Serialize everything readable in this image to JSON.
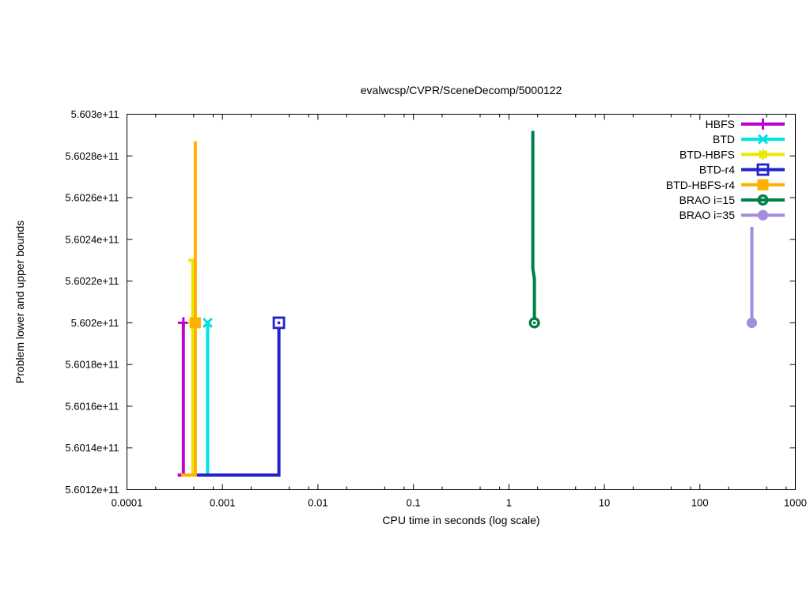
{
  "chart_data": {
    "type": "line",
    "title": "evalwcsp/CVPR/SceneDecomp/5000122",
    "xlabel": "CPU time in seconds (log scale)",
    "ylabel": "Problem lower and upper bounds",
    "x_scale": "log",
    "grid": false,
    "legend_position": "top-right-inside",
    "x_range": [
      0.0001,
      1000
    ],
    "x_ticks": [
      {
        "v": 0.0001,
        "label": "0.0001"
      },
      {
        "v": 0.001,
        "label": "0.001"
      },
      {
        "v": 0.01,
        "label": "0.01"
      },
      {
        "v": 0.1,
        "label": "0.1"
      },
      {
        "v": 1,
        "label": "1"
      },
      {
        "v": 10,
        "label": "10"
      },
      {
        "v": 100,
        "label": "100"
      },
      {
        "v": 1000,
        "label": "1000"
      }
    ],
    "x_minor_multiples": [
      2,
      5,
      8
    ],
    "y_range": [
      560120000000,
      560300000000
    ],
    "y_ticks": [
      {
        "v": 560120000000,
        "label": "5.6012e+11"
      },
      {
        "v": 560140000000,
        "label": "5.6014e+11"
      },
      {
        "v": 560160000000,
        "label": "5.6016e+11"
      },
      {
        "v": 560180000000,
        "label": "5.6018e+11"
      },
      {
        "v": 560200000000,
        "label": "5.602e+11"
      },
      {
        "v": 560220000000,
        "label": "5.6022e+11"
      },
      {
        "v": 560240000000,
        "label": "5.6024e+11"
      },
      {
        "v": 560260000000,
        "label": "5.6026e+11"
      },
      {
        "v": 560280000000,
        "label": "5.6028e+11"
      },
      {
        "v": 560300000000,
        "label": "5.603e+11"
      }
    ],
    "series": [
      {
        "name": "HBFS",
        "color": "#c000d0",
        "marker": "plus",
        "points": [
          [
            0.00034,
            560127000000
          ],
          [
            0.00039,
            560127000000
          ],
          [
            0.00039,
            560200000000
          ]
        ],
        "marker_at": [
          [
            0.00039,
            560200000000
          ]
        ]
      },
      {
        "name": "BTD",
        "color": "#00e1e1",
        "marker": "cross",
        "points": [
          [
            0.0007,
            560127000000
          ],
          [
            0.0007,
            560200000000
          ]
        ],
        "marker_at": [
          [
            0.0007,
            560200000000
          ]
        ]
      },
      {
        "name": "BTD-HBFS",
        "color": "#e8e800",
        "marker": "star",
        "points": [
          [
            0.00044,
            560230000000
          ],
          [
            0.00049,
            560230000000
          ],
          [
            0.00049,
            560127000000
          ]
        ],
        "marker_at": [
          [
            0.00049,
            560200000000
          ]
        ]
      },
      {
        "name": "BTD-r4",
        "color": "#2222cc",
        "marker": "square-open",
        "points": [
          [
            0.00052,
            560127000000
          ],
          [
            0.0039,
            560127000000
          ],
          [
            0.0039,
            560200000000
          ]
        ],
        "marker_at": [
          [
            0.0039,
            560200000000
          ]
        ]
      },
      {
        "name": "BTD-HBFS-r4",
        "color": "#ffb000",
        "marker": "square-filled",
        "points": [
          [
            0.00037,
            560127000000
          ],
          [
            0.00052,
            560127000000
          ],
          [
            0.00052,
            560287000000
          ]
        ],
        "marker_at": [
          [
            0.00052,
            560200000000
          ]
        ]
      },
      {
        "name": "BRAO i=15",
        "color": "#008047",
        "marker": "circle-dot",
        "points": [
          [
            1.78,
            560292000000
          ],
          [
            1.78,
            560226000000
          ],
          [
            1.85,
            560221000000
          ],
          [
            1.85,
            560200000000
          ]
        ],
        "marker_at": [
          [
            1.85,
            560200000000
          ]
        ]
      },
      {
        "name": "BRAO i=35",
        "color": "#a48be0",
        "marker": "circle-filled",
        "points": [
          [
            350,
            560246000000
          ],
          [
            350,
            560200000000
          ]
        ],
        "marker_at": [
          [
            350,
            560200000000
          ]
        ]
      }
    ]
  }
}
